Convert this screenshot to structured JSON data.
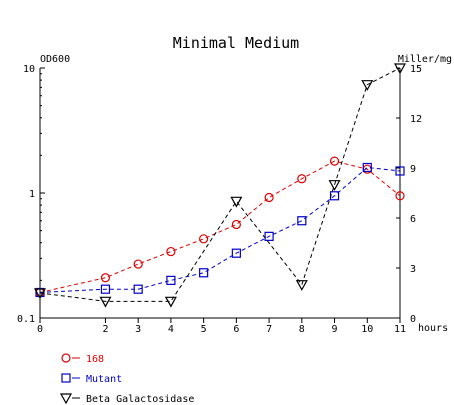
{
  "chart_data": {
    "type": "line",
    "title": "Minimal Medium",
    "x": {
      "unit_label": "hours",
      "ticks": [
        0,
        2,
        3,
        4,
        5,
        6,
        7,
        8,
        9,
        10,
        11
      ],
      "range": [
        0,
        11
      ]
    },
    "y_left": {
      "label": "OD600",
      "scale": "log",
      "range": [
        0.1,
        10
      ],
      "ticks": [
        0.1,
        1,
        10
      ],
      "tick_labels": [
        "0.1",
        "1",
        "10"
      ]
    },
    "y_right": {
      "label": "Miller/mg",
      "scale": "linear",
      "range": [
        0,
        15
      ],
      "ticks": [
        0,
        3,
        6,
        9,
        12,
        15
      ],
      "tick_labels": [
        "0",
        "3",
        "6",
        "9",
        "12",
        "15"
      ]
    },
    "series": [
      {
        "name": "168",
        "axis": "left",
        "marker": "circle",
        "color": "#dd0000",
        "line_style": "dashed",
        "x": [
          0,
          2,
          3,
          4,
          5,
          6,
          7,
          8,
          9,
          10,
          11
        ],
        "y": [
          0.16,
          0.21,
          0.27,
          0.34,
          0.43,
          0.56,
          0.92,
          1.3,
          1.8,
          1.55,
          0.95
        ]
      },
      {
        "name": "Mutant",
        "axis": "left",
        "marker": "square",
        "color": "#0000cc",
        "line_style": "dashed",
        "x": [
          0,
          2,
          3,
          4,
          5,
          6,
          7,
          8,
          9,
          10,
          11
        ],
        "y": [
          0.16,
          0.17,
          0.17,
          0.2,
          0.23,
          0.33,
          0.45,
          0.6,
          0.95,
          1.6,
          1.5
        ]
      },
      {
        "name": "Beta Galactosidase",
        "axis": "right",
        "marker": "triangle-down",
        "color": "#000000",
        "line_style": "dashed",
        "x": [
          0,
          2,
          4,
          6,
          8,
          9,
          10,
          11
        ],
        "y": [
          1.5,
          1.0,
          1.0,
          7.0,
          2.0,
          8.0,
          14.0,
          15.0
        ]
      }
    ],
    "legend_placement": "bottom-left",
    "grid": false
  }
}
